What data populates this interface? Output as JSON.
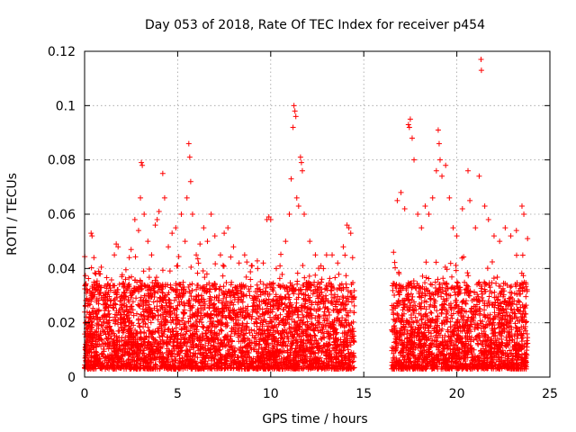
{
  "chart_data": {
    "type": "scatter",
    "title": "Day 053 of 2018, Rate Of TEC Index for receiver p454",
    "xlabel": "GPS time / hours",
    "ylabel": "ROTI / TECUs",
    "xlim": [
      0,
      25
    ],
    "ylim": [
      0,
      0.12
    ],
    "xticks": [
      0,
      5,
      10,
      15,
      20,
      25
    ],
    "xtick_labels": [
      "0",
      "5",
      "10",
      "15",
      "20",
      "25"
    ],
    "yticks": [
      0,
      0.02,
      0.04,
      0.06,
      0.08,
      0.1,
      0.12
    ],
    "ytick_labels": [
      "0",
      "0.02",
      "0.04",
      "0.06",
      "0.08",
      "0.1",
      "0.12"
    ],
    "grid": true,
    "marker": "+",
    "color": "#ff0000",
    "series": [
      {
        "name": "ROTI",
        "points": [
          [
            0.05,
            0.034
          ],
          [
            0.1,
            0.031
          ],
          [
            0.2,
            0.027
          ],
          [
            0.3,
            0.015
          ],
          [
            0.35,
            0.053
          ],
          [
            0.4,
            0.052
          ],
          [
            0.5,
            0.044
          ],
          [
            0.6,
            0.038
          ],
          [
            0.7,
            0.022
          ],
          [
            0.9,
            0.033
          ],
          [
            1.0,
            0.03
          ],
          [
            1.2,
            0.026
          ],
          [
            1.4,
            0.032
          ],
          [
            1.6,
            0.045
          ],
          [
            1.7,
            0.049
          ],
          [
            1.8,
            0.048
          ],
          [
            2.0,
            0.037
          ],
          [
            2.2,
            0.036
          ],
          [
            2.4,
            0.044
          ],
          [
            2.5,
            0.047
          ],
          [
            2.7,
            0.058
          ],
          [
            2.9,
            0.054
          ],
          [
            3.0,
            0.066
          ],
          [
            3.05,
            0.079
          ],
          [
            3.1,
            0.078
          ],
          [
            3.2,
            0.06
          ],
          [
            3.4,
            0.05
          ],
          [
            3.6,
            0.045
          ],
          [
            3.8,
            0.056
          ],
          [
            3.9,
            0.058
          ],
          [
            4.0,
            0.061
          ],
          [
            4.2,
            0.075
          ],
          [
            4.3,
            0.066
          ],
          [
            4.5,
            0.048
          ],
          [
            4.7,
            0.053
          ],
          [
            4.9,
            0.055
          ],
          [
            5.2,
            0.06
          ],
          [
            5.4,
            0.05
          ],
          [
            5.5,
            0.066
          ],
          [
            5.6,
            0.086
          ],
          [
            5.65,
            0.081
          ],
          [
            5.7,
            0.072
          ],
          [
            5.8,
            0.06
          ],
          [
            6.0,
            0.045
          ],
          [
            6.2,
            0.049
          ],
          [
            6.4,
            0.055
          ],
          [
            6.6,
            0.05
          ],
          [
            6.8,
            0.06
          ],
          [
            7.0,
            0.052
          ],
          [
            7.3,
            0.045
          ],
          [
            7.5,
            0.053
          ],
          [
            7.7,
            0.055
          ],
          [
            8.0,
            0.048
          ],
          [
            8.3,
            0.042
          ],
          [
            8.6,
            0.045
          ],
          [
            9.0,
            0.041
          ],
          [
            9.3,
            0.04
          ],
          [
            9.6,
            0.042
          ],
          [
            9.8,
            0.058
          ],
          [
            9.9,
            0.059
          ],
          [
            10.0,
            0.058
          ],
          [
            10.3,
            0.04
          ],
          [
            10.5,
            0.041
          ],
          [
            10.8,
            0.05
          ],
          [
            11.0,
            0.06
          ],
          [
            11.1,
            0.073
          ],
          [
            11.2,
            0.092
          ],
          [
            11.25,
            0.1
          ],
          [
            11.3,
            0.098
          ],
          [
            11.35,
            0.096
          ],
          [
            11.4,
            0.066
          ],
          [
            11.5,
            0.063
          ],
          [
            11.6,
            0.081
          ],
          [
            11.65,
            0.079
          ],
          [
            11.7,
            0.076
          ],
          [
            11.8,
            0.06
          ],
          [
            12.1,
            0.05
          ],
          [
            12.4,
            0.045
          ],
          [
            12.7,
            0.041
          ],
          [
            13.0,
            0.045
          ],
          [
            13.3,
            0.045
          ],
          [
            13.6,
            0.042
          ],
          [
            13.9,
            0.048
          ],
          [
            14.1,
            0.056
          ],
          [
            14.2,
            0.055
          ],
          [
            14.3,
            0.053
          ],
          [
            14.4,
            0.044
          ],
          [
            16.6,
            0.046
          ],
          [
            16.8,
            0.065
          ],
          [
            17.0,
            0.068
          ],
          [
            17.2,
            0.062
          ],
          [
            17.4,
            0.093
          ],
          [
            17.45,
            0.092
          ],
          [
            17.5,
            0.095
          ],
          [
            17.6,
            0.088
          ],
          [
            17.7,
            0.08
          ],
          [
            17.9,
            0.06
          ],
          [
            18.1,
            0.055
          ],
          [
            18.3,
            0.063
          ],
          [
            18.5,
            0.06
          ],
          [
            18.7,
            0.066
          ],
          [
            18.9,
            0.076
          ],
          [
            19.0,
            0.091
          ],
          [
            19.05,
            0.086
          ],
          [
            19.1,
            0.08
          ],
          [
            19.2,
            0.074
          ],
          [
            19.4,
            0.078
          ],
          [
            19.6,
            0.066
          ],
          [
            19.8,
            0.055
          ],
          [
            20.0,
            0.052
          ],
          [
            20.3,
            0.062
          ],
          [
            20.6,
            0.076
          ],
          [
            20.7,
            0.065
          ],
          [
            21.0,
            0.055
          ],
          [
            21.2,
            0.074
          ],
          [
            21.3,
            0.117
          ],
          [
            21.32,
            0.113
          ],
          [
            21.5,
            0.063
          ],
          [
            21.7,
            0.058
          ],
          [
            22.0,
            0.052
          ],
          [
            22.3,
            0.05
          ],
          [
            22.6,
            0.055
          ],
          [
            22.9,
            0.052
          ],
          [
            23.2,
            0.054
          ],
          [
            23.5,
            0.063
          ],
          [
            23.6,
            0.06
          ],
          [
            23.8,
            0.051
          ]
        ]
      }
    ],
    "background_density": {
      "segments": [
        [
          0.0,
          14.5
        ],
        [
          16.5,
          23.8
        ]
      ],
      "typical_range": [
        0.003,
        0.035
      ]
    }
  }
}
